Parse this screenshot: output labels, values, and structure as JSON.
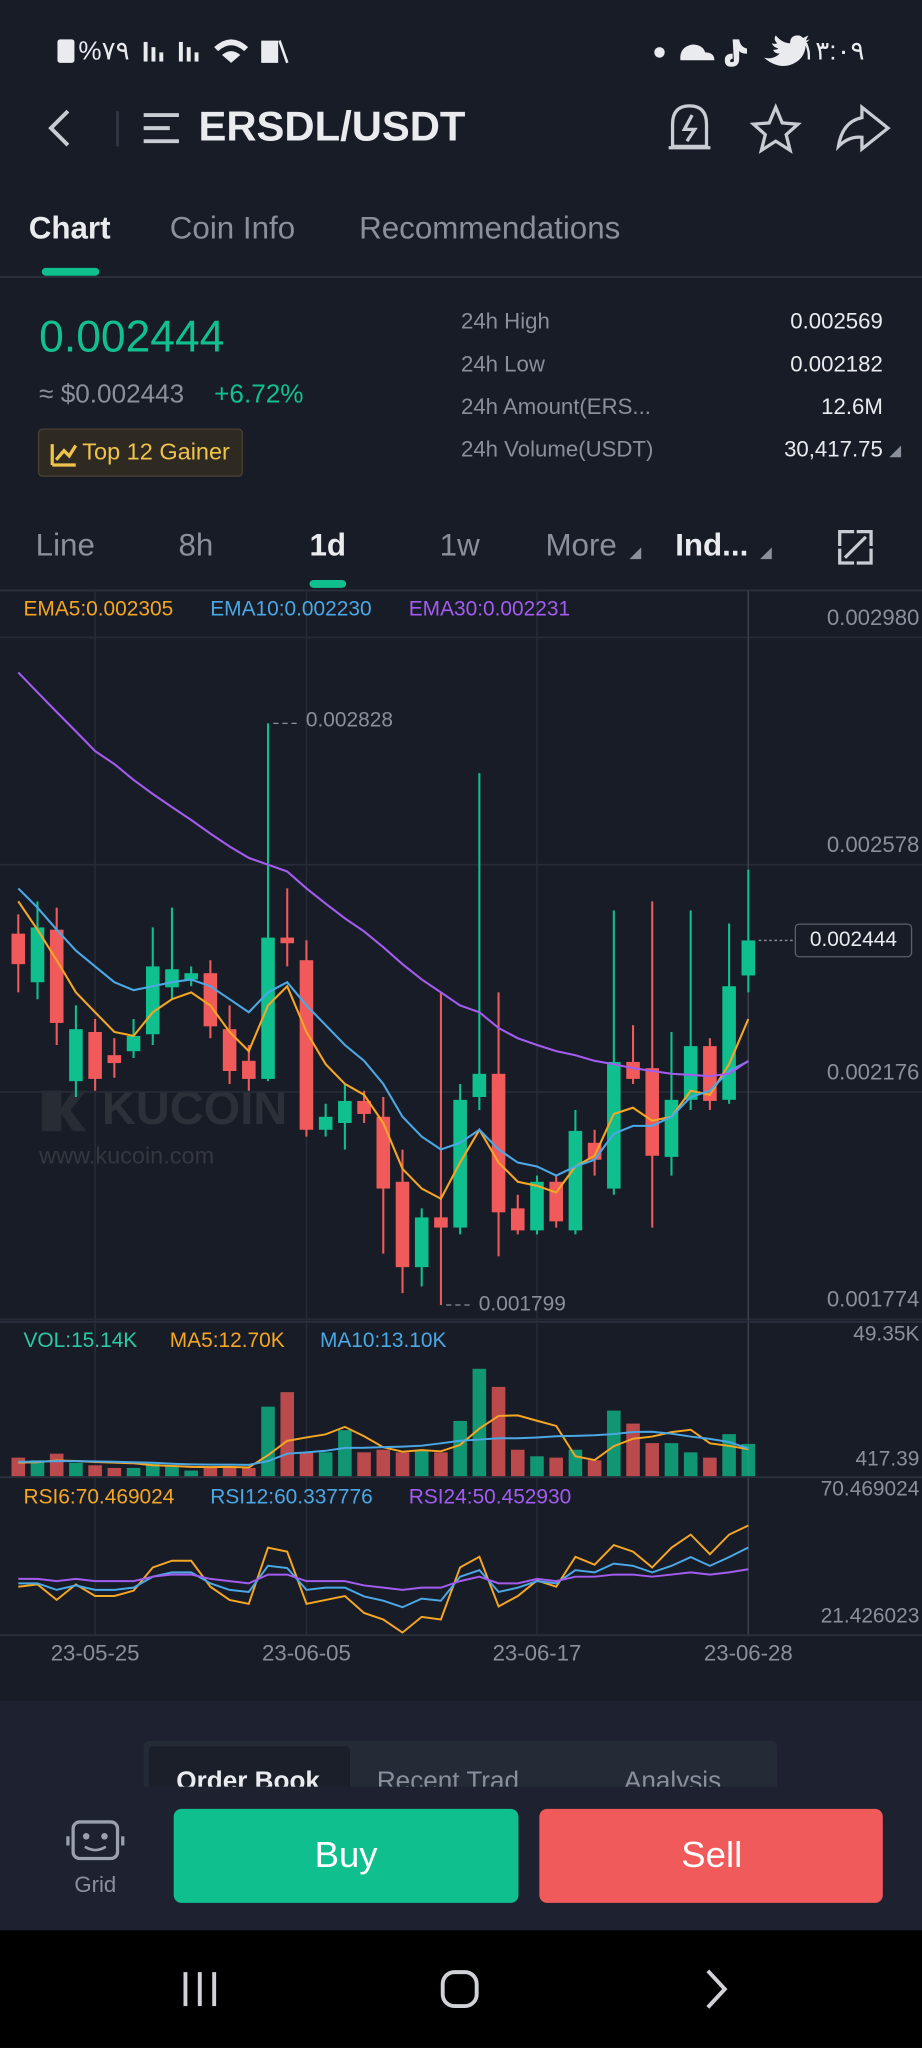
{
  "status_bar": {
    "battery": "%٧٩",
    "time": "١٣:٠٩"
  },
  "header": {
    "title": "ERSDL/USDT"
  },
  "tabs": [
    "Chart",
    "Coin Info",
    "Recommendations"
  ],
  "active_tab": 0,
  "ticker": {
    "price": "0.002444",
    "fiat": "≈ $0.002443",
    "change": "+6.72%",
    "badge": "Top 12 Gainer"
  },
  "stats": [
    {
      "label": "24h High",
      "value": "0.002569"
    },
    {
      "label": "24h Low",
      "value": "0.002182"
    },
    {
      "label": "24h Amount(ERS...",
      "value": "12.6M"
    },
    {
      "label": "24h Volume(USDT)",
      "value": "30,417.75"
    }
  ],
  "intervals": [
    "Line",
    "8h",
    "1d",
    "1w",
    "More",
    "Ind..."
  ],
  "active_interval": 2,
  "bold_intervals": [
    2,
    5
  ],
  "chart": {
    "type": "candlestick",
    "categories": [
      null,
      null,
      null,
      null,
      "23-05-25",
      null,
      null,
      null,
      null,
      null,
      null,
      null,
      null,
      null,
      null,
      "23-06-05",
      null,
      null,
      null,
      null,
      null,
      null,
      null,
      null,
      null,
      null,
      null,
      "23-06-17",
      null,
      null,
      null,
      null,
      null,
      null,
      null,
      null,
      null,
      null,
      "23-06-28"
    ],
    "open": [
      0.002456,
      0.00237,
      0.002463,
      0.002195,
      0.002282,
      0.002241,
      0.002248,
      0.002278,
      0.002361,
      0.002375,
      0.002386,
      0.002287,
      0.002231,
      0.002199,
      0.002449,
      0.002409,
      0.002109,
      0.002121,
      0.00216,
      0.002132,
      0.002017,
      0.001866,
      0.001954,
      0.001936,
      0.002167,
      0.002208,
      0.00197,
      0.001931,
      0.002017,
      0.001931,
      0.002086,
      0.002005,
      0.002229,
      0.002218,
      0.002061,
      0.002162,
      0.002257,
      0.002162,
      0.002382
    ],
    "high": [
      0.00249,
      0.002513,
      0.002502,
      0.002329,
      0.002305,
      0.002271,
      0.002305,
      0.002467,
      0.002502,
      0.002398,
      0.002409,
      0.002329,
      0.002259,
      0.002828,
      0.002536,
      0.002444,
      0.002155,
      0.00219,
      0.002178,
      0.002167,
      0.002074,
      0.00197,
      0.002352,
      0.00219,
      0.00274,
      0.002352,
      0.001994,
      0.002028,
      0.002028,
      0.002144,
      0.002109,
      0.002497,
      0.002294,
      0.002513,
      0.002282,
      0.002497,
      0.002271,
      0.002474,
      0.002569
    ],
    "low": [
      0.002352,
      0.00234,
      0.002259,
      0.002167,
      0.002178,
      0.002201,
      0.002236,
      0.002259,
      0.00234,
      0.002363,
      0.002271,
      0.00219,
      0.002178,
      0.002195,
      0.002398,
      0.002097,
      0.002097,
      0.002074,
      0.002121,
      0.00189,
      0.00182,
      0.001832,
      0.001799,
      0.001924,
      0.002144,
      0.001885,
      0.001924,
      0.001924,
      0.001936,
      0.001924,
      0.002028,
      0.001994,
      0.00219,
      0.001936,
      0.002028,
      0.002144,
      0.002144,
      0.002155,
      0.002352
    ],
    "close": [
      0.002402,
      0.002467,
      0.002298,
      0.002287,
      0.002199,
      0.002227,
      0.002275,
      0.002398,
      0.002393,
      0.002386,
      0.002292,
      0.002213,
      0.002199,
      0.002449,
      0.002439,
      0.002109,
      0.002132,
      0.00216,
      0.002137,
      0.002005,
      0.001866,
      0.001954,
      0.001936,
      0.002162,
      0.002208,
      0.001963,
      0.001931,
      0.002017,
      0.001947,
      0.002107,
      0.002056,
      0.002229,
      0.002199,
      0.002063,
      0.002162,
      0.002257,
      0.00216,
      0.002363,
      0.002444
    ],
    "up_color": "#0fbf8e",
    "down_color": "#f05a5a",
    "yticks": [
      {
        "value": 0.00298,
        "label": "0.002980"
      },
      {
        "value": 0.002578,
        "label": "0.002578"
      },
      {
        "value": 0.002176,
        "label": "0.002176"
      },
      {
        "value": 0.001774,
        "label": "0.001774"
      }
    ],
    "high_label": "0.002828",
    "low_label": "0.001799",
    "last_label": "0.002444",
    "overlays": [
      {
        "label": "EMA5:0.002305",
        "color": "#f5a623",
        "values": [
          0.002513,
          0.002463,
          0.002409,
          0.002352,
          0.002317,
          0.002282,
          0.002275,
          0.002317,
          0.00234,
          0.002352,
          0.002329,
          0.002282,
          0.002248,
          0.002329,
          0.002363,
          0.002282,
          0.002225,
          0.00219,
          0.002171,
          0.002121,
          0.00204,
          0.002005,
          0.001987,
          0.002051,
          0.002109,
          0.002051,
          0.002017,
          0.00201,
          0.001998,
          0.002044,
          0.002063,
          0.002137,
          0.002148,
          0.002125,
          0.002132,
          0.002178,
          0.002171,
          0.002225,
          0.002305
        ]
      },
      {
        "label": "EMA10:0.002230",
        "color": "#4ba8e6",
        "values": [
          0.002536,
          0.002502,
          0.002463,
          0.002426,
          0.002398,
          0.00237,
          0.002356,
          0.002363,
          0.00237,
          0.002375,
          0.002363,
          0.00234,
          0.002317,
          0.002352,
          0.00237,
          0.002329,
          0.002294,
          0.002259,
          0.002231,
          0.00219,
          0.002132,
          0.002097,
          0.002074,
          0.002086,
          0.002109,
          0.002074,
          0.002051,
          0.002044,
          0.002028,
          0.002044,
          0.002056,
          0.002102,
          0.002116,
          0.002116,
          0.002132,
          0.002167,
          0.002178,
          0.002213,
          0.00223
        ]
      },
      {
        "label": "EMA30:0.002231",
        "color": "#a35cf0",
        "values": [
          0.002918,
          0.002883,
          0.002848,
          0.002814,
          0.002779,
          0.002756,
          0.002728,
          0.002703,
          0.00268,
          0.002657,
          0.002633,
          0.00261,
          0.00259,
          0.002578,
          0.002566,
          0.002536,
          0.002509,
          0.002483,
          0.00246,
          0.002432,
          0.002402,
          0.002375,
          0.002352,
          0.002329,
          0.002317,
          0.002289,
          0.002271,
          0.002259,
          0.002248,
          0.002241,
          0.002231,
          0.002225,
          0.002218,
          0.002213,
          0.002208,
          0.002206,
          0.002204,
          0.002208,
          0.002231
        ]
      }
    ],
    "watermark": "KUCOIN",
    "watermark_url": "www.kucoin.com",
    "volume": {
      "label": "VOL:15.14K",
      "color": "#2bc9a5",
      "values": [
        8900,
        7700,
        10700,
        6500,
        5400,
        4200,
        4200,
        6500,
        5400,
        3000,
        4200,
        4200,
        4200,
        32100,
        38700,
        11300,
        11300,
        21400,
        11300,
        12500,
        11300,
        12500,
        11300,
        25600,
        49350,
        41100,
        12500,
        9500,
        8900,
        12500,
        7700,
        30300,
        24400,
        15500,
        15500,
        11300,
        8900,
        19600,
        15140
      ],
      "ticks": [
        {
          "value": 49350,
          "label": "49.35K"
        },
        417.39
      ],
      "overlays": [
        {
          "label": "MA5:12.70K",
          "color": "#f5a623",
          "values": [
            6600,
            6800,
            7600,
            7400,
            6900,
            6600,
            6300,
            5400,
            5100,
            4700,
            4600,
            4700,
            4400,
            10000,
            16500,
            18100,
            19500,
            22900,
            18600,
            13600,
            11600,
            12300,
            11800,
            14700,
            22100,
            27900,
            28100,
            25700,
            23300,
            9500,
            7800,
            14100,
            17500,
            18500,
            20500,
            21600,
            15400,
            14200,
            12700
          ]
        },
        {
          "label": "MA10:13.10K",
          "color": "#4ba8e6",
          "values": [
            7000,
            7100,
            7300,
            7300,
            7200,
            7000,
            6800,
            6600,
            6100,
            5800,
            5700,
            5700,
            5600,
            7300,
            10700,
            11300,
            12000,
            13300,
            13400,
            13700,
            13900,
            14300,
            15400,
            16600,
            17100,
            17700,
            17700,
            18100,
            18600,
            18800,
            19100,
            19600,
            20600,
            20700,
            19800,
            18500,
            17400,
            16000,
            13100
          ]
        }
      ]
    },
    "rsi": {
      "ticks": [
        70.469024,
        21.426023
      ],
      "series": [
        {
          "label": "RSI6:70.469024",
          "color": "#f5a623",
          "values": [
            42.4,
            43.5,
            36.4,
            43.5,
            38.2,
            38.2,
            40.6,
            51.3,
            54.3,
            54.3,
            42.4,
            36.4,
            34.6,
            60.3,
            58.5,
            34.6,
            36.4,
            38.2,
            30.4,
            27.4,
            21.43,
            28.6,
            27.4,
            51.3,
            56.1,
            33.4,
            38.2,
            45.3,
            42.4,
            56.1,
            52.5,
            61.5,
            58.5,
            51.3,
            60.3,
            66.3,
            57.3,
            66.3,
            70.469024
          ]
        },
        {
          "label": "RSI12:60.337776",
          "color": "#4ba8e6",
          "values": [
            44,
            44,
            41,
            43,
            41,
            41,
            42,
            47,
            49,
            49,
            44,
            41,
            40,
            52,
            51,
            41,
            42,
            42,
            38,
            36,
            33,
            37,
            36,
            47,
            50,
            40,
            42,
            45,
            44,
            50,
            49,
            53,
            52,
            49,
            52,
            56,
            52,
            56,
            60.337776
          ]
        },
        {
          "label": "RSI24:50.452930",
          "color": "#a35cf0",
          "values": [
            46,
            46,
            45,
            46,
            45,
            45,
            45,
            47,
            48,
            48,
            46,
            45,
            44,
            48,
            48,
            45,
            45,
            45,
            43,
            42,
            41,
            42,
            42,
            45,
            47,
            44,
            44,
            46,
            45,
            47,
            47,
            48,
            48,
            47,
            48,
            49,
            48,
            49,
            50.45293
          ]
        }
      ]
    }
  },
  "order_tabs": [
    "Order Book",
    "Recent Trad",
    "Analysis"
  ],
  "actions": {
    "grid": "Grid",
    "buy": "Buy",
    "sell": "Sell"
  }
}
